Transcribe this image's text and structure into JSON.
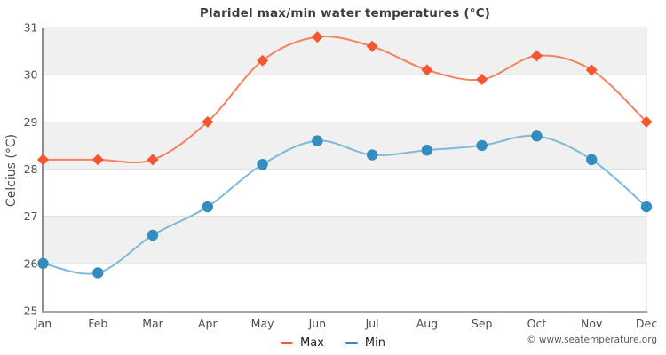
{
  "footer": "© www.seatemperature.org",
  "chart_data": {
    "type": "line",
    "title": "Plaridel max/min water temperatures (°C)",
    "ylabel": "Celcius (°C)",
    "xlabel": "",
    "categories": [
      "Jan",
      "Feb",
      "Mar",
      "Apr",
      "May",
      "Jun",
      "Jul",
      "Aug",
      "Sep",
      "Oct",
      "Nov",
      "Dec"
    ],
    "series": [
      {
        "name": "Max",
        "marker": "diamond",
        "line_color": "#f58160",
        "marker_color": "#f4572f",
        "values": [
          28.2,
          28.2,
          28.2,
          29.0,
          30.3,
          30.8,
          30.6,
          30.1,
          29.9,
          30.4,
          30.1,
          29.0
        ]
      },
      {
        "name": "Min",
        "marker": "circle",
        "line_color": "#7fb9da",
        "marker_color": "#338dbf",
        "values": [
          26.0,
          25.8,
          26.6,
          27.2,
          28.1,
          28.6,
          28.3,
          28.4,
          28.5,
          28.7,
          28.2,
          27.2
        ]
      }
    ],
    "ylim": [
      25,
      31
    ],
    "yticks": [
      25,
      26,
      27,
      28,
      29,
      30,
      31
    ],
    "grid": "horizontal-bands",
    "legend_position": "bottom",
    "style": {
      "band_fill": "#f0f0f0",
      "grid_color": "#e2e2e2",
      "right_border_color": "#dcdcdc",
      "y_axis_color": "#8f8f8f",
      "x_axis_color": "#a5a5a5",
      "tick_label_color": "#4d4d4d",
      "title_color": "#3d3d3d"
    }
  }
}
